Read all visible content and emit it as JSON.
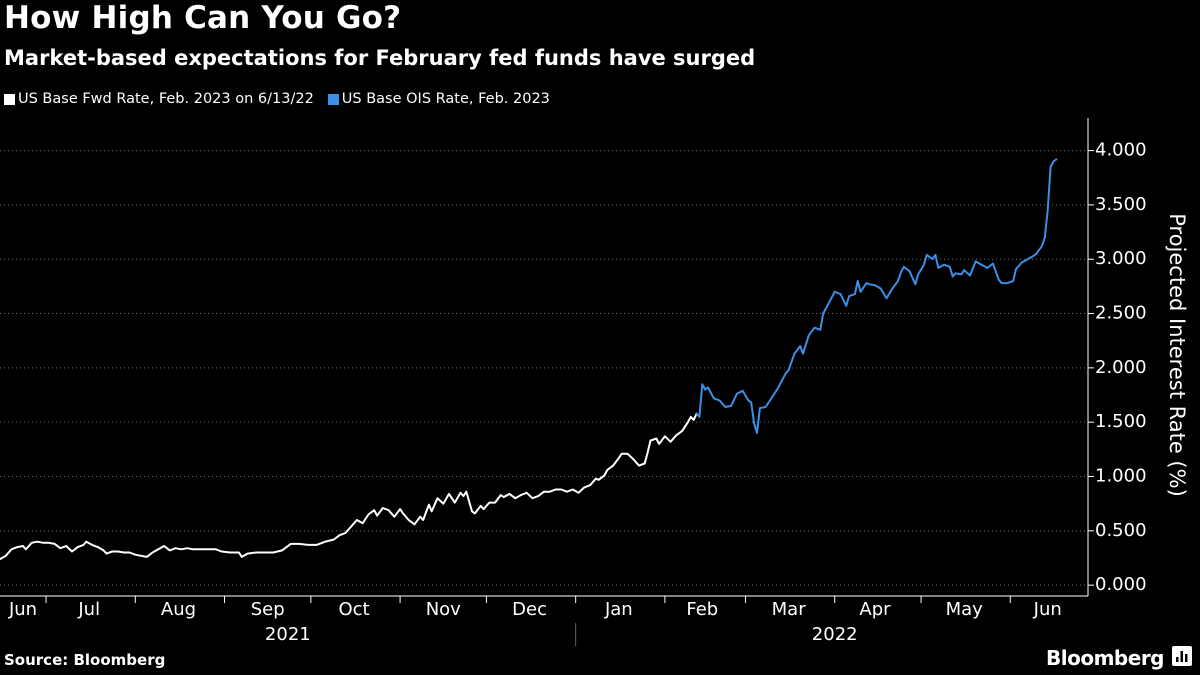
{
  "title": "How High Can You Go?",
  "subtitle": "Market-based expectations for February fed funds have surged",
  "source": "Source: Bloomberg",
  "brand": "Bloomberg",
  "chart_data": {
    "type": "line",
    "ylabel": "Projected Interest Rate (%)",
    "ylim": [
      -0.1,
      4.3
    ],
    "yticks": [
      0.0,
      0.5,
      1.0,
      1.5,
      2.0,
      2.5,
      3.0,
      3.5,
      4.0
    ],
    "ytick_labels": [
      "0.000",
      "0.500",
      "1.000",
      "1.500",
      "2.000",
      "2.500",
      "3.000",
      "3.500",
      "4.000"
    ],
    "xlim": [
      0,
      378
    ],
    "months": [
      {
        "label": "Jun",
        "center": 8
      },
      {
        "label": "Jul",
        "center": 31
      },
      {
        "label": "Aug",
        "center": 62
      },
      {
        "label": "Sep",
        "center": 93
      },
      {
        "label": "Oct",
        "center": 123
      },
      {
        "label": "Nov",
        "center": 154
      },
      {
        "label": "Dec",
        "center": 184
      },
      {
        "label": "Jan",
        "center": 215
      },
      {
        "label": "Feb",
        "center": 244
      },
      {
        "label": "Mar",
        "center": 274
      },
      {
        "label": "Apr",
        "center": 304
      },
      {
        "label": "May",
        "center": 335
      },
      {
        "label": "Jun",
        "center": 364
      }
    ],
    "month_boundaries": [
      16,
      47,
      78,
      108,
      139,
      169,
      200,
      231,
      259,
      290,
      320,
      351
    ],
    "years": [
      {
        "label": "2021",
        "center": 100
      },
      {
        "label": "2022",
        "center": 290
      }
    ],
    "year_boundary": 200,
    "series": [
      {
        "name": "US Base Fwd Rate, Feb. 2023 on 6/13/22",
        "color": "#ffffff",
        "points": [
          [
            0,
            0.24
          ],
          [
            2,
            0.27
          ],
          [
            4,
            0.33
          ],
          [
            6,
            0.35
          ],
          [
            8,
            0.36
          ],
          [
            9,
            0.33
          ],
          [
            11,
            0.39
          ],
          [
            13,
            0.4
          ],
          [
            15,
            0.39
          ],
          [
            17,
            0.39
          ],
          [
            19,
            0.38
          ],
          [
            21,
            0.34
          ],
          [
            23,
            0.36
          ],
          [
            25,
            0.31
          ],
          [
            27,
            0.35
          ],
          [
            29,
            0.37
          ],
          [
            30,
            0.4
          ],
          [
            32,
            0.37
          ],
          [
            34,
            0.35
          ],
          [
            36,
            0.32
          ],
          [
            37,
            0.29
          ],
          [
            39,
            0.31
          ],
          [
            41,
            0.31
          ],
          [
            43,
            0.3
          ],
          [
            45,
            0.3
          ],
          [
            47,
            0.28
          ],
          [
            49,
            0.27
          ],
          [
            51,
            0.26
          ],
          [
            53,
            0.3
          ],
          [
            55,
            0.33
          ],
          [
            57,
            0.36
          ],
          [
            59,
            0.32
          ],
          [
            61,
            0.34
          ],
          [
            63,
            0.33
          ],
          [
            65,
            0.34
          ],
          [
            67,
            0.33
          ],
          [
            70,
            0.33
          ],
          [
            73,
            0.33
          ],
          [
            75,
            0.33
          ],
          [
            77,
            0.31
          ],
          [
            80,
            0.3
          ],
          [
            83,
            0.3
          ],
          [
            84,
            0.26
          ],
          [
            86,
            0.29
          ],
          [
            89,
            0.3
          ],
          [
            92,
            0.3
          ],
          [
            95,
            0.3
          ],
          [
            98,
            0.32
          ],
          [
            101,
            0.38
          ],
          [
            104,
            0.38
          ],
          [
            107,
            0.37
          ],
          [
            110,
            0.37
          ],
          [
            113,
            0.4
          ],
          [
            116,
            0.42
          ],
          [
            118,
            0.46
          ],
          [
            120,
            0.48
          ],
          [
            122,
            0.54
          ],
          [
            124,
            0.6
          ],
          [
            126,
            0.57
          ],
          [
            128,
            0.65
          ],
          [
            130,
            0.69
          ],
          [
            131,
            0.64
          ],
          [
            133,
            0.71
          ],
          [
            135,
            0.69
          ],
          [
            137,
            0.63
          ],
          [
            139,
            0.7
          ],
          [
            140,
            0.66
          ],
          [
            142,
            0.6
          ],
          [
            144,
            0.56
          ],
          [
            146,
            0.63
          ],
          [
            147,
            0.6
          ],
          [
            149,
            0.74
          ],
          [
            150,
            0.68
          ],
          [
            152,
            0.8
          ],
          [
            154,
            0.75
          ],
          [
            156,
            0.84
          ],
          [
            158,
            0.76
          ],
          [
            160,
            0.85
          ],
          [
            161,
            0.82
          ],
          [
            162,
            0.86
          ],
          [
            164,
            0.68
          ],
          [
            165,
            0.66
          ],
          [
            167,
            0.73
          ],
          [
            168,
            0.7
          ],
          [
            170,
            0.76
          ],
          [
            172,
            0.76
          ],
          [
            174,
            0.83
          ],
          [
            175,
            0.81
          ],
          [
            177,
            0.84
          ],
          [
            179,
            0.8
          ],
          [
            181,
            0.83
          ],
          [
            183,
            0.85
          ],
          [
            185,
            0.8
          ],
          [
            187,
            0.82
          ],
          [
            189,
            0.86
          ],
          [
            191,
            0.86
          ],
          [
            193,
            0.88
          ],
          [
            195,
            0.88
          ],
          [
            197,
            0.86
          ],
          [
            199,
            0.88
          ],
          [
            201,
            0.85
          ],
          [
            203,
            0.9
          ],
          [
            205,
            0.92
          ],
          [
            207,
            0.98
          ],
          [
            208,
            0.97
          ],
          [
            210,
            1.01
          ],
          [
            211,
            1.06
          ],
          [
            213,
            1.1
          ],
          [
            215,
            1.17
          ],
          [
            216,
            1.21
          ],
          [
            218,
            1.21
          ],
          [
            220,
            1.16
          ],
          [
            222,
            1.1
          ],
          [
            224,
            1.12
          ],
          [
            225,
            1.22
          ],
          [
            226,
            1.33
          ],
          [
            228,
            1.35
          ],
          [
            229,
            1.3
          ],
          [
            231,
            1.37
          ],
          [
            233,
            1.32
          ],
          [
            235,
            1.38
          ],
          [
            237,
            1.42
          ],
          [
            239,
            1.5
          ],
          [
            240,
            1.55
          ],
          [
            241,
            1.52
          ],
          [
            242,
            1.58
          ]
        ]
      },
      {
        "name": "US Base OIS Rate, Feb. 2023",
        "color": "#3b8fe6",
        "points": [
          [
            242,
            1.58
          ],
          [
            243,
            1.55
          ],
          [
            244,
            1.85
          ],
          [
            245,
            1.8
          ],
          [
            246,
            1.82
          ],
          [
            248,
            1.72
          ],
          [
            250,
            1.7
          ],
          [
            252,
            1.64
          ],
          [
            254,
            1.65
          ],
          [
            256,
            1.76
          ],
          [
            258,
            1.79
          ],
          [
            260,
            1.7
          ],
          [
            261,
            1.68
          ],
          [
            262,
            1.49
          ],
          [
            263,
            1.4
          ],
          [
            264,
            1.63
          ],
          [
            266,
            1.64
          ],
          [
            268,
            1.72
          ],
          [
            270,
            1.8
          ],
          [
            272,
            1.9
          ],
          [
            273,
            1.95
          ],
          [
            274,
            1.98
          ],
          [
            276,
            2.13
          ],
          [
            278,
            2.2
          ],
          [
            279,
            2.13
          ],
          [
            281,
            2.3
          ],
          [
            283,
            2.37
          ],
          [
            285,
            2.35
          ],
          [
            286,
            2.5
          ],
          [
            288,
            2.6
          ],
          [
            290,
            2.7
          ],
          [
            292,
            2.68
          ],
          [
            294,
            2.57
          ],
          [
            295,
            2.66
          ],
          [
            297,
            2.68
          ],
          [
            298,
            2.8
          ],
          [
            299,
            2.7
          ],
          [
            301,
            2.78
          ],
          [
            302,
            2.77
          ],
          [
            304,
            2.76
          ],
          [
            306,
            2.73
          ],
          [
            308,
            2.64
          ],
          [
            310,
            2.73
          ],
          [
            312,
            2.8
          ],
          [
            313,
            2.88
          ],
          [
            314,
            2.93
          ],
          [
            316,
            2.89
          ],
          [
            318,
            2.77
          ],
          [
            319,
            2.86
          ],
          [
            321,
            2.95
          ],
          [
            322,
            3.04
          ],
          [
            324,
            3.0
          ],
          [
            325,
            3.04
          ],
          [
            326,
            2.92
          ],
          [
            328,
            2.95
          ],
          [
            330,
            2.93
          ],
          [
            331,
            2.84
          ],
          [
            332,
            2.87
          ],
          [
            334,
            2.86
          ],
          [
            335,
            2.9
          ],
          [
            337,
            2.85
          ],
          [
            339,
            2.98
          ],
          [
            341,
            2.95
          ],
          [
            343,
            2.92
          ],
          [
            345,
            2.96
          ],
          [
            347,
            2.81
          ],
          [
            348,
            2.78
          ],
          [
            350,
            2.78
          ],
          [
            352,
            2.8
          ],
          [
            353,
            2.91
          ],
          [
            355,
            2.97
          ],
          [
            357,
            3.0
          ],
          [
            359,
            3.03
          ],
          [
            360,
            3.05
          ],
          [
            362,
            3.12
          ],
          [
            363,
            3.2
          ],
          [
            364,
            3.45
          ],
          [
            365,
            3.85
          ],
          [
            366,
            3.9
          ],
          [
            367,
            3.92
          ]
        ]
      }
    ]
  }
}
